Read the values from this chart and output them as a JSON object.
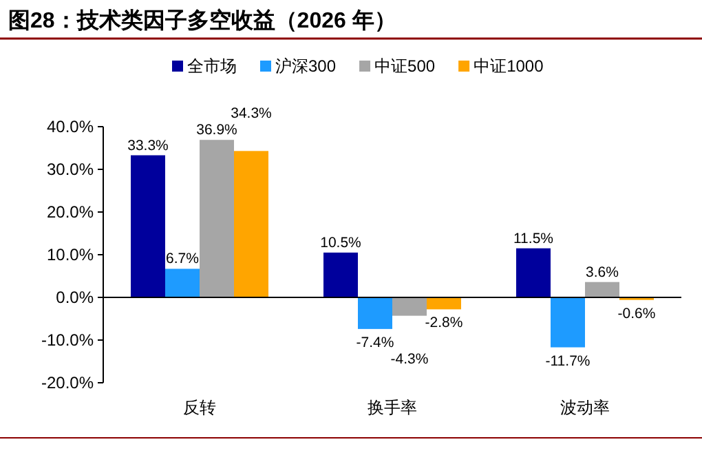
{
  "chart_data": {
    "type": "bar",
    "title": "图28：技术类因子多空收益（2026 年）",
    "categories": [
      "反转",
      "换手率",
      "波动率"
    ],
    "series": [
      {
        "name": "全市场",
        "color": "#00009c",
        "values": [
          33.3,
          10.5,
          11.5
        ],
        "value_labels": [
          "33.3%",
          "10.5%",
          "11.5%"
        ]
      },
      {
        "name": "沪深300",
        "color": "#1e9bff",
        "values": [
          6.7,
          -7.4,
          -11.7
        ],
        "value_labels": [
          "6.7%",
          "-7.4%",
          "-11.7%"
        ]
      },
      {
        "name": "中证500",
        "color": "#a6a6a6",
        "values": [
          36.9,
          -4.3,
          3.6
        ],
        "value_labels": [
          "36.9%",
          "-4.3%",
          "3.6%"
        ]
      },
      {
        "name": "中证1000",
        "color": "#ffa500",
        "values": [
          34.3,
          -2.8,
          -0.6
        ],
        "value_labels": [
          "34.3%",
          "-2.8%",
          "-0.6%"
        ]
      }
    ],
    "ylim": [
      -20,
      40
    ],
    "yticks": [
      {
        "value": -20,
        "label": "-20.0%"
      },
      {
        "value": -10,
        "label": "-10.0%"
      },
      {
        "value": 0,
        "label": "0.0%"
      },
      {
        "value": 10,
        "label": "10.0%"
      },
      {
        "value": 20,
        "label": "20.0%"
      },
      {
        "value": 30,
        "label": "30.0%"
      },
      {
        "value": 40,
        "label": "40.0%"
      }
    ],
    "legend": "top"
  }
}
